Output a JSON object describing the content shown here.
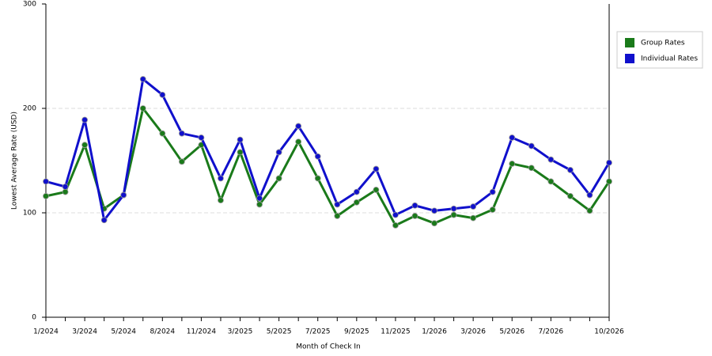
{
  "chart_data": {
    "type": "line",
    "x_label": "Month of Check In",
    "y_label": "Lowest Average Rate (USD)",
    "categories": [
      "1/2024",
      null,
      "3/2024",
      null,
      "5/2024",
      null,
      "8/2024",
      null,
      "11/2024",
      null,
      "3/2025",
      null,
      "5/2025",
      null,
      "7/2025",
      null,
      "9/2025",
      null,
      "11/2025",
      null,
      "1/2026",
      null,
      "3/2026",
      null,
      "5/2026",
      null,
      "7/2026",
      null,
      null,
      "10/2026"
    ],
    "series": [
      {
        "name": "Group Rates",
        "color": "#1a7a1a",
        "values": [
          116,
          120,
          165,
          104,
          117,
          200,
          176,
          149,
          165,
          112,
          158,
          108,
          133,
          168,
          133,
          97,
          110,
          122,
          88,
          97,
          90,
          98,
          95,
          103,
          147,
          143,
          130,
          116,
          102,
          130
        ]
      },
      {
        "name": "Individual Rates",
        "color": "#1010cc",
        "values": [
          130,
          125,
          189,
          93,
          117,
          228,
          213,
          176,
          172,
          133,
          170,
          114,
          158,
          183,
          154,
          108,
          120,
          142,
          98,
          107,
          102,
          104,
          106,
          120,
          172,
          164,
          151,
          141,
          117,
          148
        ]
      }
    ],
    "ylim": [
      0,
      300
    ],
    "yticks": [
      0,
      100,
      200,
      300
    ],
    "grid": true,
    "legend": "right"
  }
}
